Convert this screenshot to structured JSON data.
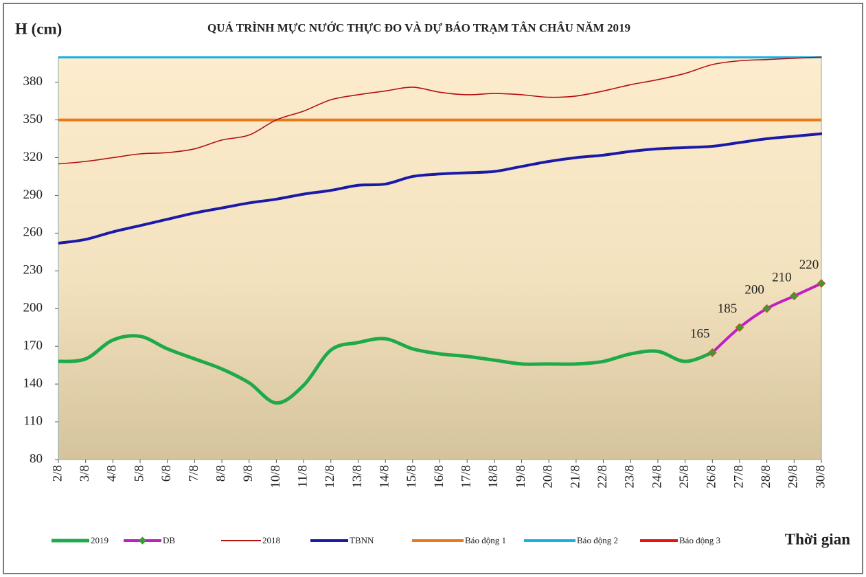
{
  "chart_data": {
    "type": "line",
    "title": "QUÁ TRÌNH MỰC NƯỚC THỰC ĐO VÀ DỰ BÁO TRẠM TÂN CHÂU NĂM 2019",
    "y_label": "H (cm)",
    "x_label": "Thời gian",
    "categories": [
      "2/8",
      "3/8",
      "4/8",
      "5/8",
      "6/8",
      "7/8",
      "8/8",
      "9/8",
      "10/8",
      "11/8",
      "12/8",
      "13/8",
      "14/8",
      "15/8",
      "16/8",
      "17/8",
      "18/8",
      "19/8",
      "20/8",
      "21/8",
      "22/8",
      "23/8",
      "24/8",
      "25/8",
      "26/8",
      "27/8",
      "28/8",
      "29/8",
      "30/8"
    ],
    "series": [
      {
        "name": "2019",
        "color": "#1faa4a",
        "width": 5,
        "values": [
          158,
          160,
          175,
          178,
          168,
          160,
          152,
          141,
          125,
          139,
          167,
          173,
          176,
          168,
          164,
          162,
          159,
          156,
          156,
          156,
          158,
          164,
          166,
          158,
          165,
          null,
          null,
          null,
          null
        ]
      },
      {
        "name": "DB",
        "color": "#c21fc2",
        "width": 4,
        "markers": true,
        "data_labels": true,
        "values": [
          null,
          null,
          null,
          null,
          null,
          null,
          null,
          null,
          null,
          null,
          null,
          null,
          null,
          null,
          null,
          null,
          null,
          null,
          null,
          null,
          null,
          null,
          null,
          null,
          165,
          185,
          200,
          210,
          220
        ]
      },
      {
        "name": "2018",
        "color": "#b01010",
        "width": 1.6,
        "values": [
          315,
          317,
          320,
          323,
          324,
          327,
          334,
          338,
          350,
          357,
          366,
          370,
          373,
          376,
          372,
          370,
          371,
          370,
          368,
          369,
          373,
          378,
          382,
          387,
          394,
          397,
          398,
          399,
          400
        ]
      },
      {
        "name": "TBNN",
        "color": "#1a1aa8",
        "width": 4,
        "values": [
          252,
          255,
          261,
          266,
          271,
          276,
          280,
          284,
          287,
          291,
          294,
          298,
          299,
          305,
          307,
          308,
          309,
          313,
          317,
          320,
          322,
          325,
          327,
          328,
          329,
          332,
          335,
          337,
          339
        ]
      }
    ],
    "thresholds": [
      {
        "name": "Báo động 1",
        "color": "#e87a1c",
        "value": 350
      },
      {
        "name": "Báo động 2",
        "color": "#17b0e8",
        "value": 400
      },
      {
        "name": "Báo động 3",
        "color": "#ee1111"
      }
    ],
    "ylim": [
      80,
      400
    ],
    "yticks": [
      80,
      110,
      140,
      170,
      200,
      230,
      260,
      290,
      320,
      350,
      380
    ]
  }
}
